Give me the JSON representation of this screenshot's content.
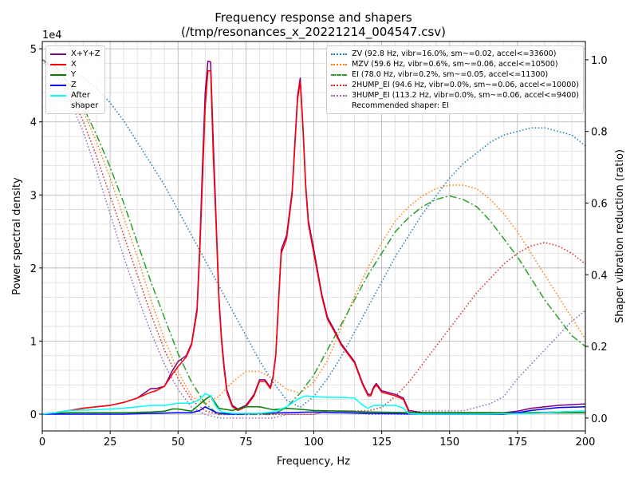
{
  "chart_data": {
    "type": "line",
    "title": "Frequency response and shapers",
    "subtitle": "(/tmp/resonances_x_20221214_004547.csv)",
    "xlabel": "Frequency, Hz",
    "ylabel": "Power spectral density",
    "y2label": "Shaper vibration reduction (ratio)",
    "y_offset_label": "1e4",
    "xlim": [
      0,
      200
    ],
    "xticks": [
      0,
      25,
      50,
      75,
      100,
      125,
      150,
      175,
      200
    ],
    "ylim": [
      -0.23,
      5.1
    ],
    "yticks": [
      0,
      1,
      2,
      3,
      4,
      5
    ],
    "y2lim": [
      -0.036,
      1.051
    ],
    "y2ticks": [
      {
        "value": 0,
        "label": "0.0"
      },
      0.2,
      0.4,
      0.6,
      0.8,
      {
        "value": 1,
        "label": "1.0"
      }
    ],
    "grid": true,
    "minor_grid": true,
    "legend": "upper left",
    "legend2": "upper right",
    "legend2_note": "Recommended shaper: EI",
    "series": [
      {
        "name": "X+Y+Z",
        "color": "#800080",
        "style": "solid",
        "axis": "y",
        "x": [
          0,
          5,
          10,
          15,
          20,
          25,
          30,
          35,
          40,
          42,
          45,
          48,
          50,
          53,
          55,
          57,
          58,
          59,
          60,
          61,
          62,
          63,
          64,
          65,
          66,
          67,
          68,
          70,
          72,
          75,
          78,
          80,
          82,
          84,
          85,
          86,
          87,
          88,
          90,
          92,
          94,
          95,
          96,
          97,
          98,
          100,
          103,
          105,
          108,
          110,
          112,
          115,
          118,
          120,
          121,
          122,
          123,
          125,
          130,
          133,
          135,
          140,
          150,
          160,
          170,
          175,
          180,
          190,
          200
        ],
        "values": [
          0,
          0.02,
          0.05,
          0.08,
          0.1,
          0.12,
          0.16,
          0.22,
          0.35,
          0.35,
          0.38,
          0.6,
          0.72,
          0.8,
          0.97,
          1.45,
          2.3,
          3.4,
          4.4,
          4.83,
          4.82,
          3.7,
          2.7,
          1.65,
          1.05,
          0.65,
          0.33,
          0.12,
          0.07,
          0.12,
          0.27,
          0.47,
          0.47,
          0.37,
          0.52,
          0.82,
          1.55,
          2.25,
          2.45,
          3.05,
          4.35,
          4.6,
          3.95,
          3.15,
          2.65,
          2.25,
          1.63,
          1.33,
          1.12,
          0.97,
          0.87,
          0.72,
          0.42,
          0.27,
          0.27,
          0.37,
          0.42,
          0.32,
          0.27,
          0.22,
          0.05,
          0.02,
          0.02,
          0.02,
          0.02,
          0.04,
          0.08,
          0.12,
          0.14
        ]
      },
      {
        "name": "X",
        "color": "#ff0000",
        "style": "solid",
        "axis": "y",
        "x": [
          0,
          5,
          10,
          15,
          20,
          25,
          30,
          35,
          40,
          42,
          45,
          48,
          50,
          53,
          55,
          57,
          58,
          59,
          60,
          61,
          62,
          63,
          64,
          65,
          66,
          67,
          68,
          70,
          72,
          75,
          78,
          80,
          82,
          84,
          85,
          86,
          87,
          88,
          90,
          92,
          94,
          95,
          96,
          97,
          98,
          100,
          103,
          105,
          108,
          110,
          112,
          115,
          118,
          120,
          121,
          122,
          123,
          125,
          130,
          133,
          135,
          140,
          150,
          160,
          170,
          175,
          180,
          190,
          200
        ],
        "values": [
          0,
          0.02,
          0.05,
          0.08,
          0.1,
          0.12,
          0.16,
          0.22,
          0.3,
          0.32,
          0.38,
          0.55,
          0.65,
          0.78,
          0.95,
          1.4,
          2.2,
          3.2,
          4.2,
          4.7,
          4.7,
          3.5,
          2.6,
          1.6,
          1,
          0.6,
          0.3,
          0.1,
          0.05,
          0.1,
          0.25,
          0.45,
          0.45,
          0.35,
          0.5,
          0.8,
          1.5,
          2.2,
          2.4,
          3,
          4.3,
          4.55,
          3.9,
          3.1,
          2.6,
          2.2,
          1.6,
          1.3,
          1.1,
          0.95,
          0.85,
          0.7,
          0.4,
          0.25,
          0.25,
          0.35,
          0.4,
          0.3,
          0.25,
          0.2,
          0.03,
          0,
          0,
          0,
          0,
          0.01,
          0.02,
          0.03,
          0.04
        ]
      },
      {
        "name": "Y",
        "color": "#008000",
        "style": "solid",
        "axis": "y",
        "x": [
          0,
          10,
          20,
          30,
          40,
          45,
          48,
          50,
          55,
          60,
          62,
          65,
          70,
          75,
          80,
          85,
          90,
          100,
          110,
          120,
          140,
          160,
          180,
          200
        ],
        "values": [
          0,
          0.02,
          0.02,
          0.02,
          0.03,
          0.04,
          0.07,
          0.07,
          0.04,
          0.2,
          0.25,
          0.08,
          0.05,
          0.1,
          0.1,
          0.06,
          0.08,
          0.05,
          0.04,
          0.03,
          0.02,
          0.02,
          0.02,
          0.02
        ]
      },
      {
        "name": "Z",
        "color": "#0000ff",
        "style": "solid",
        "axis": "y",
        "x": [
          0,
          10,
          20,
          30,
          40,
          50,
          55,
          58,
          60,
          62,
          64,
          66,
          70,
          80,
          90,
          100,
          110,
          120,
          140,
          160,
          170,
          175,
          180,
          185,
          190,
          200
        ],
        "values": [
          0,
          0,
          0,
          0,
          0.01,
          0.02,
          0.02,
          0.05,
          0.1,
          0.06,
          0.02,
          0.01,
          0,
          0.01,
          0.02,
          0.03,
          0.02,
          0.01,
          0,
          0,
          0,
          0.02,
          0.05,
          0.07,
          0.09,
          0.1
        ]
      },
      {
        "name": "After\nshaper",
        "color": "#00ffff",
        "style": "solid",
        "axis": "y",
        "x": [
          0,
          5,
          10,
          20,
          30,
          40,
          45,
          50,
          55,
          58,
          60,
          62,
          64,
          66,
          70,
          80,
          85,
          90,
          94,
          95,
          97,
          100,
          105,
          110,
          115,
          118,
          120,
          122,
          125,
          130,
          133,
          135,
          140,
          160,
          180,
          190,
          200
        ],
        "values": [
          0,
          0.02,
          0.05,
          0.06,
          0.08,
          0.12,
          0.12,
          0.15,
          0.15,
          0.2,
          0.28,
          0.25,
          0.1,
          0.03,
          0.01,
          0.01,
          0.03,
          0.1,
          0.2,
          0.22,
          0.25,
          0.24,
          0.23,
          0.23,
          0.22,
          0.12,
          0.08,
          0.12,
          0.12,
          0.12,
          0.08,
          0.01,
          0,
          0,
          0.01,
          0.03,
          0.04
        ]
      },
      {
        "name": "ZV (92.8 Hz, vibr=16.0%, sm~=0.02, accel<=33600)",
        "color": "#1f77b4",
        "style": "dotted",
        "axis": "y2",
        "x": [
          0,
          5,
          10,
          15,
          20,
          25,
          30,
          35,
          40,
          45,
          50,
          55,
          60,
          65,
          70,
          75,
          80,
          85,
          90,
          95,
          100,
          105,
          110,
          115,
          120,
          125,
          130,
          135,
          140,
          145,
          150,
          155,
          160,
          165,
          170,
          175,
          180,
          185,
          190,
          195,
          200
        ],
        "values": [
          1,
          0.99,
          0.97,
          0.95,
          0.92,
          0.88,
          0.83,
          0.77,
          0.71,
          0.65,
          0.58,
          0.51,
          0.44,
          0.37,
          0.3,
          0.23,
          0.16,
          0.1,
          0.05,
          0.03,
          0.06,
          0.11,
          0.17,
          0.24,
          0.31,
          0.38,
          0.45,
          0.51,
          0.57,
          0.62,
          0.67,
          0.71,
          0.74,
          0.77,
          0.79,
          0.8,
          0.81,
          0.81,
          0.8,
          0.79,
          0.76
        ]
      },
      {
        "name": "MZV (59.6 Hz, vibr=0.6%, sm~=0.06, accel<=10500)",
        "color": "#ff7f0e",
        "style": "dotted",
        "axis": "y2",
        "x": [
          0,
          5,
          10,
          15,
          20,
          25,
          30,
          35,
          40,
          45,
          50,
          55,
          60,
          65,
          70,
          75,
          80,
          85,
          90,
          95,
          100,
          105,
          110,
          115,
          120,
          125,
          130,
          135,
          140,
          145,
          150,
          155,
          160,
          165,
          170,
          175,
          180,
          185,
          190,
          195,
          200
        ],
        "values": [
          1,
          0.98,
          0.93,
          0.86,
          0.77,
          0.67,
          0.56,
          0.45,
          0.33,
          0.22,
          0.13,
          0.06,
          0.04,
          0.06,
          0.1,
          0.13,
          0.13,
          0.11,
          0.08,
          0.07,
          0.1,
          0.16,
          0.25,
          0.34,
          0.42,
          0.49,
          0.55,
          0.59,
          0.62,
          0.64,
          0.65,
          0.65,
          0.64,
          0.61,
          0.57,
          0.52,
          0.46,
          0.4,
          0.34,
          0.28,
          0.22
        ]
      },
      {
        "name": "EI (78.0 Hz, vibr=0.2%, sm~=0.05, accel<=11300)",
        "color": "#2ca02c",
        "style": "dashdot",
        "axis": "y2",
        "x": [
          0,
          5,
          10,
          15,
          20,
          25,
          30,
          35,
          40,
          45,
          50,
          55,
          60,
          65,
          70,
          75,
          80,
          85,
          90,
          95,
          100,
          105,
          110,
          115,
          120,
          125,
          130,
          135,
          140,
          145,
          150,
          155,
          160,
          165,
          170,
          175,
          180,
          185,
          190,
          195,
          200
        ],
        "values": [
          1,
          0.98,
          0.93,
          0.87,
          0.79,
          0.7,
          0.6,
          0.49,
          0.38,
          0.28,
          0.18,
          0.1,
          0.04,
          0.01,
          0.01,
          0.01,
          0.01,
          0.01,
          0.03,
          0.07,
          0.12,
          0.19,
          0.26,
          0.33,
          0.4,
          0.46,
          0.52,
          0.56,
          0.59,
          0.61,
          0.62,
          0.61,
          0.59,
          0.55,
          0.5,
          0.45,
          0.39,
          0.33,
          0.28,
          0.23,
          0.2
        ]
      },
      {
        "name": "2HUMP_EI (94.6 Hz, vibr=0.0%, sm~=0.06, accel<=10000)",
        "color": "#d62728",
        "style": "dotted",
        "axis": "y2",
        "x": [
          0,
          5,
          10,
          15,
          20,
          25,
          30,
          35,
          40,
          45,
          50,
          55,
          60,
          65,
          70,
          75,
          80,
          85,
          90,
          95,
          100,
          105,
          110,
          115,
          120,
          125,
          130,
          135,
          140,
          145,
          150,
          155,
          160,
          165,
          170,
          175,
          180,
          185,
          190,
          195,
          200
        ],
        "values": [
          1,
          0.97,
          0.91,
          0.83,
          0.73,
          0.62,
          0.51,
          0.4,
          0.29,
          0.19,
          0.11,
          0.05,
          0.02,
          0.01,
          0.01,
          0.01,
          0.01,
          0.01,
          0.01,
          0.01,
          0.01,
          0.02,
          0.02,
          0.02,
          0.02,
          0.03,
          0.06,
          0.1,
          0.15,
          0.2,
          0.25,
          0.3,
          0.35,
          0.39,
          0.43,
          0.46,
          0.48,
          0.49,
          0.48,
          0.46,
          0.43
        ]
      },
      {
        "name": "3HUMP_EI (113.2 Hz, vibr=0.0%, sm~=0.06, accel<=9400)",
        "color": "#9467bd",
        "style": "dotted",
        "axis": "y2",
        "x": [
          0,
          5,
          10,
          15,
          20,
          25,
          30,
          35,
          40,
          45,
          50,
          55,
          60,
          65,
          70,
          75,
          80,
          85,
          90,
          95,
          100,
          105,
          110,
          115,
          120,
          125,
          130,
          135,
          140,
          145,
          150,
          155,
          160,
          165,
          170,
          175,
          180,
          185,
          190,
          195,
          200
        ],
        "values": [
          1,
          0.96,
          0.89,
          0.8,
          0.69,
          0.57,
          0.45,
          0.34,
          0.24,
          0.15,
          0.08,
          0.03,
          0.01,
          0,
          0,
          0,
          0,
          0,
          0.01,
          0.01,
          0.01,
          0.02,
          0.02,
          0.02,
          0.01,
          0.01,
          0.01,
          0.01,
          0.02,
          0.02,
          0.02,
          0.02,
          0.03,
          0.04,
          0.06,
          0.11,
          0.15,
          0.19,
          0.23,
          0.27,
          0.3
        ]
      }
    ]
  }
}
